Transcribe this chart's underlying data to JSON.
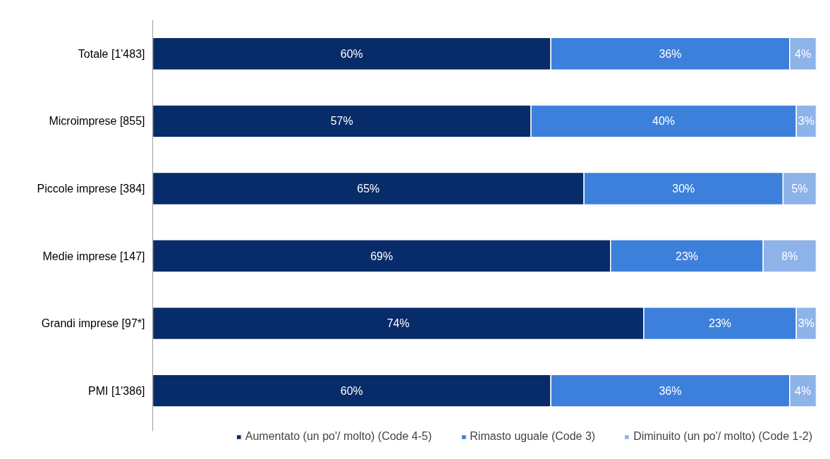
{
  "chart_data": {
    "type": "bar",
    "orientation": "horizontal",
    "stacked": true,
    "categories": [
      "Totale [1'483]",
      "Microimprese [855]",
      "Piccole imprese [384]",
      "Medie imprese [147]",
      "Grandi imprese [97*]",
      "PMI [1'386]"
    ],
    "xlim": [
      0,
      100
    ],
    "tick_labels": "y",
    "grid": false,
    "legend": "bottom",
    "series": [
      {
        "name": "Aumentato (un po'/ molto) (Code 4-5)",
        "color": "#082b69",
        "values": [
          60,
          57,
          65,
          69,
          74,
          60
        ],
        "value_labels": [
          "60%",
          "57%",
          "65%",
          "69%",
          "74%",
          "60%"
        ]
      },
      {
        "name": "Rimasto uguale (Code 3)",
        "color": "#3d80db",
        "values": [
          36,
          40,
          30,
          23,
          23,
          36
        ],
        "value_labels": [
          "36%",
          "40%",
          "30%",
          "23%",
          "23%",
          "36%"
        ]
      },
      {
        "name": "Diminuito (un po'/ molto) (Code 1-2)",
        "color": "#8db3e8",
        "values": [
          4,
          3,
          5,
          8,
          3,
          4
        ],
        "value_labels": [
          "4%",
          "3%",
          "5%",
          "8%",
          "3%",
          "4%"
        ]
      }
    ]
  }
}
